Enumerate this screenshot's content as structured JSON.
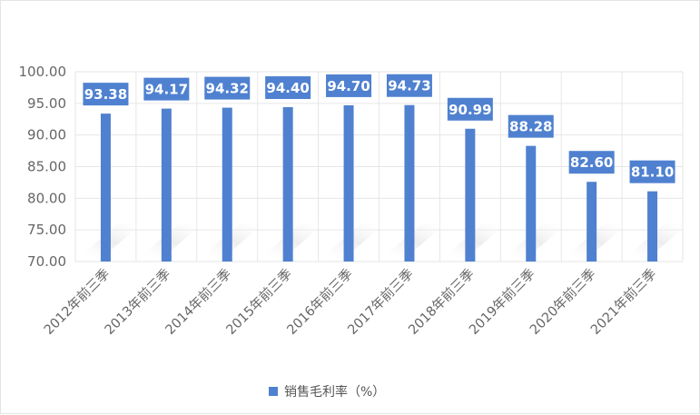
{
  "chart_data": {
    "type": "bar",
    "categories": [
      "2012年前三季",
      "2013年前三季",
      "2014年前三季",
      "2015年前三季",
      "2016年前三季",
      "2017年前三季",
      "2018年前三季",
      "2019年前三季",
      "2020年前三季",
      "2021年前三季"
    ],
    "series": [
      {
        "name": "销售毛利率（%）",
        "values": [
          93.38,
          94.17,
          94.32,
          94.4,
          94.7,
          94.73,
          90.99,
          88.28,
          82.6,
          81.1
        ],
        "labels": [
          "93.38",
          "94.17",
          "94.32",
          "94.40",
          "94.70",
          "94.73",
          "90.99",
          "88.28",
          "82.60",
          "81.10"
        ]
      }
    ],
    "ylim": [
      70,
      100
    ],
    "yticks": [
      70,
      75,
      80,
      85,
      90,
      95,
      100
    ],
    "ytick_labels": [
      "70.00",
      "75.00",
      "80.00",
      "85.00",
      "90.00",
      "95.00",
      "100.00"
    ],
    "grid": true,
    "legend": "bottom-center",
    "colors": {
      "bar": "#4f81d0",
      "label_box": "#4f81d0",
      "grid": "#e6e6e6"
    }
  }
}
